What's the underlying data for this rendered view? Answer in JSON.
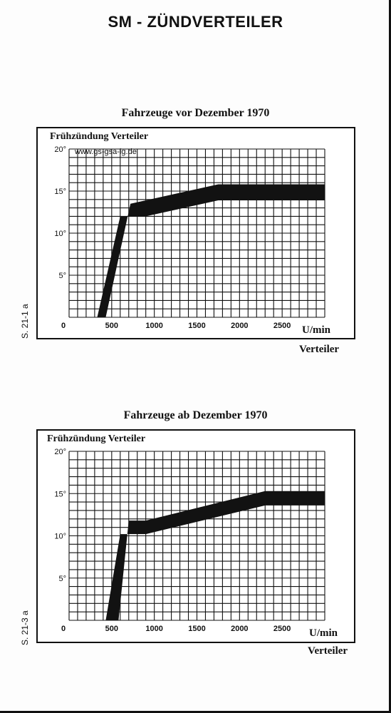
{
  "page": {
    "title": "SM - ZÜNDVERTEILER",
    "watermark": "www.gs-gsa-ig.de"
  },
  "panels": [
    {
      "title": "Fahrzeuge vor Dezember 1970",
      "ylabel": "Frühzündung Verteiler",
      "units": "U/min",
      "xlabel": "Verteiler",
      "side_label": "S. 21-1 a"
    },
    {
      "title": "Fahrzeuge ab Dezember 1970",
      "ylabel": "Frühzündung Verteiler",
      "units": "U/min",
      "xlabel": "Verteiler",
      "side_label": "S. 21-3 a"
    }
  ],
  "chart_data": [
    {
      "type": "area",
      "title": "Fahrzeuge vor Dezember 1970",
      "xlabel": "U/min Verteiler",
      "ylabel": "Frühzündung Verteiler",
      "xlim": [
        0,
        3000
      ],
      "ylim": [
        0,
        20
      ],
      "x_ticks": [
        0,
        500,
        1000,
        1500,
        2000,
        2500
      ],
      "y_ticks": [
        5,
        10,
        15,
        20
      ],
      "x_tick_labels": [
        "0",
        "500",
        "1000",
        "1500",
        "2000",
        "2500"
      ],
      "y_tick_labels": [
        "5°",
        "10°",
        "15°",
        "20°"
      ],
      "grid": true,
      "series": [
        {
          "band_upper": [
            [
              430,
              0
            ],
            [
              720,
              13.5
            ],
            [
              1750,
              15.8
            ],
            [
              3000,
              15.8
            ]
          ],
          "band_lower": [
            [
              330,
              0
            ],
            [
              600,
              12
            ],
            [
              900,
              12
            ],
            [
              1750,
              13.9
            ],
            [
              3000,
              13.9
            ]
          ]
        }
      ]
    },
    {
      "type": "area",
      "title": "Fahrzeuge ab Dezember 1970",
      "xlabel": "U/min Verteiler",
      "ylabel": "Frühzündung Verteiler",
      "xlim": [
        0,
        3000
      ],
      "ylim": [
        0,
        20
      ],
      "x_ticks": [
        0,
        500,
        1000,
        1500,
        2000,
        2500
      ],
      "y_ticks": [
        5,
        10,
        15,
        20
      ],
      "x_tick_labels": [
        "0",
        "500",
        "1000",
        "1500",
        "2000",
        "2500"
      ],
      "y_tick_labels": [
        "5°",
        "10°",
        "15°",
        "20°"
      ],
      "grid": true,
      "series": [
        {
          "band_upper": [
            [
              580,
              0
            ],
            [
              700,
              11.8
            ],
            [
              900,
              11.8
            ],
            [
              2300,
              15.3
            ],
            [
              3000,
              15.3
            ]
          ],
          "band_lower": [
            [
              430,
              0
            ],
            [
              600,
              10.2
            ],
            [
              900,
              10.2
            ],
            [
              2300,
              13.6
            ],
            [
              3000,
              13.6
            ]
          ]
        }
      ]
    }
  ]
}
